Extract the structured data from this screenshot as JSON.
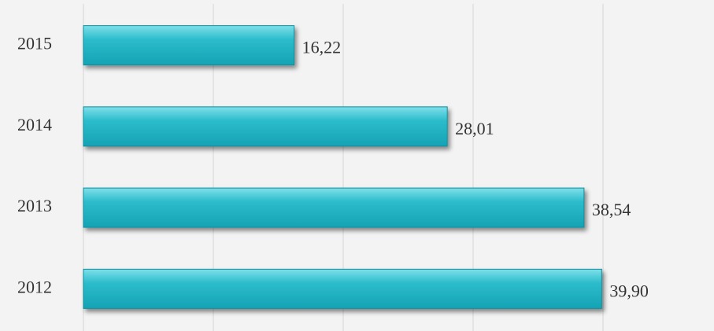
{
  "chart_data": {
    "type": "bar",
    "orientation": "horizontal",
    "categories": [
      "2015",
      "2014",
      "2013",
      "2012"
    ],
    "values": [
      16.22,
      28.01,
      38.54,
      39.9
    ],
    "value_labels": [
      "16,22",
      "28,01",
      "38,54",
      "39,90"
    ],
    "color": "#1eaebf",
    "xlim": [
      0,
      40
    ],
    "xticks": [
      0,
      10,
      20,
      30,
      40
    ],
    "grid": true
  }
}
